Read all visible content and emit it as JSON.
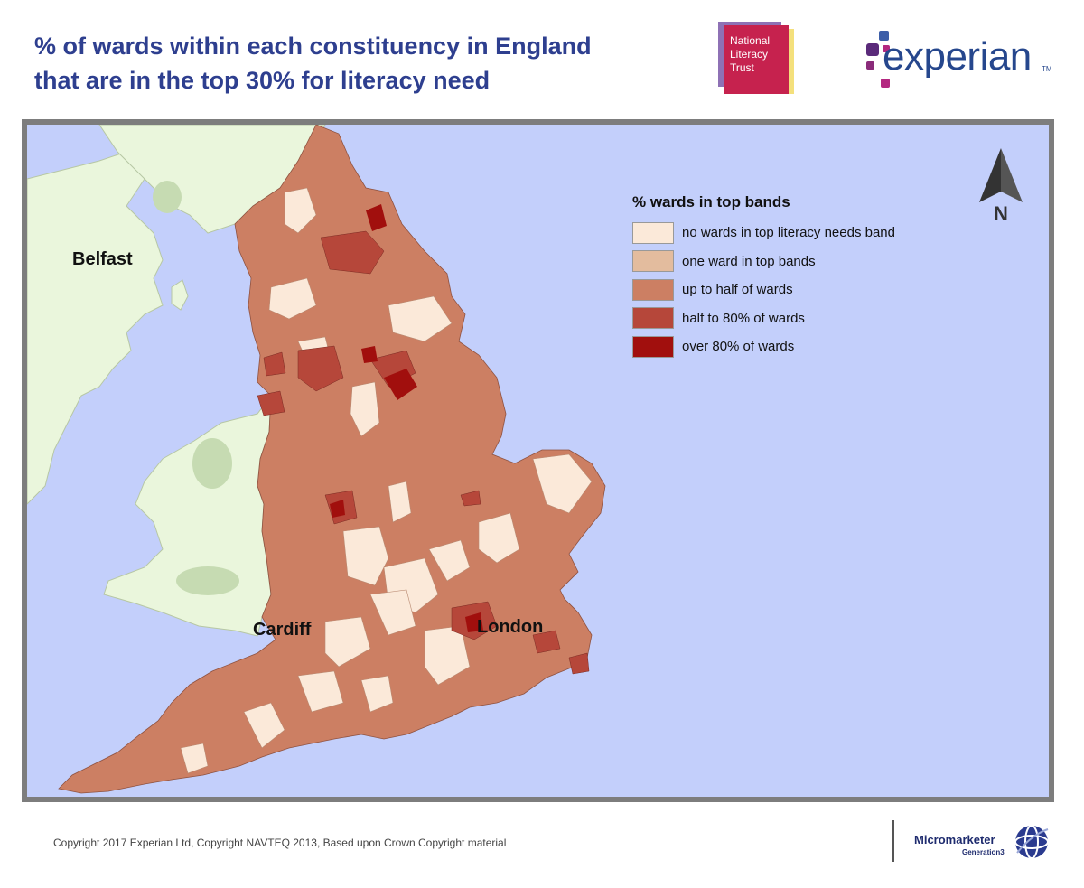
{
  "title": {
    "line1": "% of wards within each constituency in England",
    "line2": "that are in the top 30% for literacy need"
  },
  "logos": {
    "nlt": {
      "line1": "National",
      "line2": "Literacy",
      "line3": "Trust"
    },
    "experian": {
      "word": "experian",
      "tm": "TM"
    },
    "micromarketer": {
      "name": "Micromarketer",
      "sub": "Generation3"
    }
  },
  "map": {
    "labels": {
      "belfast": "Belfast",
      "cardiff": "Cardiff",
      "london": "London"
    },
    "north": "N"
  },
  "legend": {
    "title": "% wards in top bands",
    "items": [
      {
        "label": "no wards in top literacy needs band",
        "color": "#fbe9d9"
      },
      {
        "label": "one ward in top bands",
        "color": "#e3bc9e"
      },
      {
        "label": "up to half of wards",
        "color": "#cc7f63"
      },
      {
        "label": "half to 80% of wards",
        "color": "#b6473a"
      },
      {
        "label": "over 80% of wards",
        "color": "#a10f0d"
      }
    ]
  },
  "colors": {
    "sea": "#c3cffb",
    "land_other": "#eaf6dc",
    "upland": "#c6dbb2",
    "title": "#2e3f8f"
  },
  "footer": {
    "copyright": "Copyright 2017 Experian Ltd, Copyright NAVTEQ 2013,  Based upon Crown Copyright material"
  }
}
